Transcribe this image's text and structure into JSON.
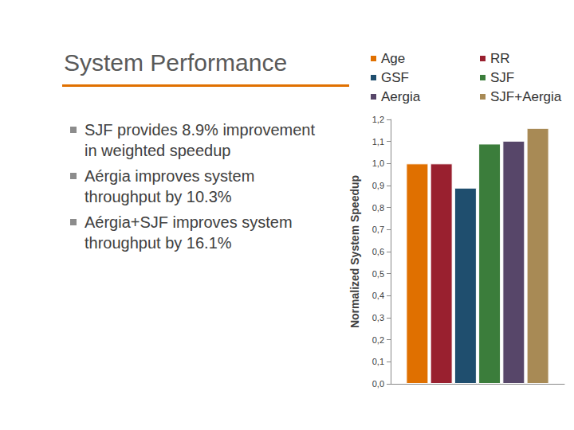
{
  "chart_data": {
    "type": "bar",
    "title": "System Performance",
    "annotations": [
      "SJF provides 8.9% improvement in weighted speedup",
      "Aérgia improves system throughput by 10.3%",
      "Aérgia+SJF improves system throughput by 16.1%"
    ],
    "y_label": "Normalized System Speedup",
    "categories": [
      null
    ],
    "series": [
      {
        "name": "Age",
        "color": "#E07000",
        "values": [
          1.0
        ]
      },
      {
        "name": "RR",
        "color": "#99202F",
        "values": [
          1.0
        ]
      },
      {
        "name": "GSF",
        "color": "#1F4E6E",
        "values": [
          0.89
        ]
      },
      {
        "name": "SJF",
        "color": "#3B7D3B",
        "values": [
          1.09
        ]
      },
      {
        "name": "Aergia",
        "color": "#574669",
        "values": [
          1.103
        ]
      },
      {
        "name": "SJF+Aergia",
        "color": "#A88A55",
        "values": [
          1.161
        ]
      }
    ],
    "ylim": [
      0,
      1.2
    ],
    "yticks": [
      {
        "value": 0,
        "label": "0,0"
      },
      {
        "value": 0.1,
        "label": "0,1"
      },
      {
        "value": 0.2,
        "label": "0,2"
      },
      {
        "value": 0.3,
        "label": "0,3"
      },
      {
        "value": 0.4,
        "label": "0,4"
      },
      {
        "value": 0.5,
        "label": "0,5"
      },
      {
        "value": 0.6,
        "label": "0,6"
      },
      {
        "value": 0.7,
        "label": "0,7"
      },
      {
        "value": 0.8,
        "label": "0,8"
      },
      {
        "value": 0.9,
        "label": "0,9"
      },
      {
        "value": 1,
        "label": "1,0"
      },
      {
        "value": 1.1,
        "label": "1,1"
      },
      {
        "value": 1.2,
        "label": "1,2"
      }
    ],
    "grid": false,
    "legend": "top-right"
  }
}
